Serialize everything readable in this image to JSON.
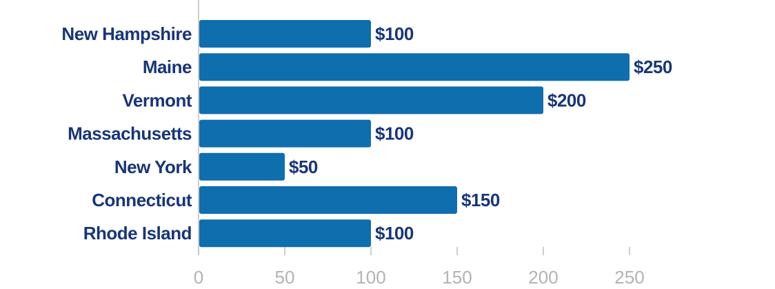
{
  "chart_data": {
    "type": "bar",
    "orientation": "horizontal",
    "categories": [
      "New Hampshire",
      "Maine",
      "Vermont",
      "Massachusetts",
      "New York",
      "Connecticut",
      "Rhode Island"
    ],
    "values": [
      100,
      250,
      200,
      100,
      50,
      150,
      100
    ],
    "value_labels": [
      "$100",
      "$250",
      "$200",
      "$100",
      "$50",
      "$150",
      "$100"
    ],
    "xlim": [
      0,
      250
    ],
    "x_ticks": [
      "0",
      "50",
      "100",
      "150",
      "200",
      "250"
    ],
    "title": "",
    "xlabel": "",
    "ylabel": "",
    "grid": false,
    "colors": {
      "bar": "#0e6eae",
      "label": "#17357a",
      "tick": "#b3b3b3",
      "axis": "#bdbdbd"
    }
  }
}
